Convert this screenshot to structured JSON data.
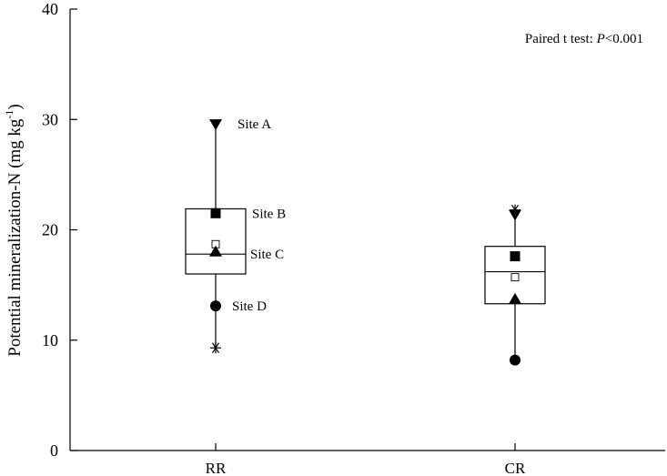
{
  "chart_data": {
    "type": "box",
    "ylabel_main": "Potential mineralization-N (mg kg",
    "ylabel_sup": "-1",
    "ylabel_close": ")",
    "ylim": [
      0,
      40
    ],
    "yticks": [
      0,
      10,
      20,
      30,
      40
    ],
    "categories": [
      "RR",
      "CR"
    ],
    "annotation_prefix": "Paired t test: ",
    "annotation_p": "P",
    "annotation_value": "<0.001",
    "boxes": [
      {
        "category": "RR",
        "whisker_low": 9.3,
        "q1": 16.0,
        "median": 17.8,
        "mean": 18.7,
        "q3": 21.9,
        "whisker_high": 29.8,
        "points": [
          {
            "site": "Site A",
            "marker": "triangle-down",
            "value": 29.6
          },
          {
            "site": "Site B",
            "marker": "square",
            "value": 21.5
          },
          {
            "site": "Site C",
            "marker": "triangle-up",
            "value": 18.0
          },
          {
            "site": "Site D",
            "marker": "circle",
            "value": 13.1
          }
        ],
        "outliers": [
          {
            "marker": "asterisk",
            "value": 9.3
          }
        ]
      },
      {
        "category": "CR",
        "whisker_low": 8.2,
        "q1": 13.3,
        "median": 16.2,
        "mean": 15.7,
        "q3": 18.5,
        "whisker_high": 21.8,
        "points": [
          {
            "site": "Site A",
            "marker": "triangle-down",
            "value": 21.4
          },
          {
            "site": "Site B",
            "marker": "square",
            "value": 17.6
          },
          {
            "site": "Site C",
            "marker": "triangle-up",
            "value": 13.7
          },
          {
            "site": "Site D",
            "marker": "circle",
            "value": 8.2
          }
        ],
        "outliers": [
          {
            "marker": "asterisk",
            "value": 21.8
          }
        ]
      }
    ],
    "site_labels": [
      "Site A",
      "Site B",
      "Site C",
      "Site D"
    ],
    "colors": {
      "ink": "#000000",
      "background": "#ffffff"
    }
  }
}
